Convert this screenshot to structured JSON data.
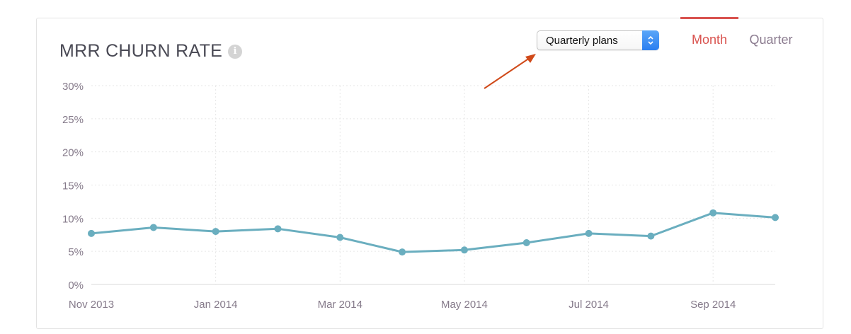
{
  "header": {
    "title": "MRR CHURN RATE",
    "info_icon": "info-icon"
  },
  "plan_select": {
    "value": "Quarterly plans",
    "icon": "chevron-updown-icon"
  },
  "period_tabs": [
    {
      "label": "Month",
      "active": true
    },
    {
      "label": "Quarter",
      "active": false
    }
  ],
  "colors": {
    "line": "#6aaebf",
    "active_tab": "#d9534f",
    "annotation_arrow": "#d04a1a"
  },
  "chart_data": {
    "type": "line",
    "title": "MRR CHURN RATE",
    "x": [
      "Nov 2013",
      "Dec 2013",
      "Jan 2014",
      "Feb 2014",
      "Mar 2014",
      "Apr 2014",
      "May 2014",
      "Jun 2014",
      "Jul 2014",
      "Aug 2014",
      "Sep 2014",
      "Oct 2014"
    ],
    "x_tick_labels": [
      "Nov 2013",
      "Jan 2014",
      "Mar 2014",
      "May 2014",
      "Jul 2014",
      "Sep 2014"
    ],
    "y_tick_labels": [
      "0%",
      "5%",
      "10%",
      "15%",
      "20%",
      "25%",
      "30%"
    ],
    "series": [
      {
        "values": [
          7.7,
          8.6,
          8.0,
          8.4,
          7.1,
          4.9,
          5.2,
          6.3,
          7.7,
          7.3,
          10.8,
          10.1
        ]
      }
    ],
    "ylim": [
      0,
      30
    ],
    "y_unit": "%",
    "grid": true,
    "annotation": "arrow pointing to plan selector"
  }
}
